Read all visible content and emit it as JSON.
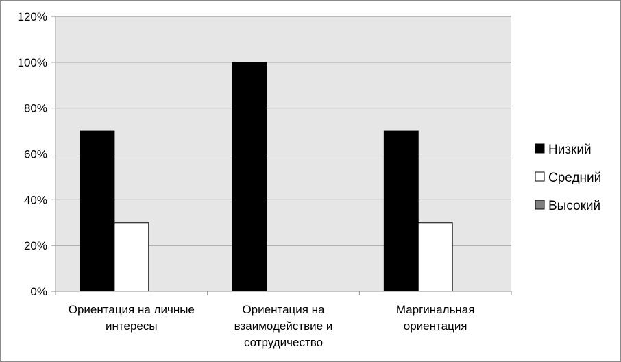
{
  "chart_data": {
    "type": "bar",
    "categories": [
      [
        "Ориентация на личные",
        "интересы"
      ],
      [
        "Ориентация на",
        "взаимодействие и",
        "сотрудичество"
      ],
      [
        "Маргинальная",
        "ориентация"
      ]
    ],
    "series": [
      {
        "name": "Низкий",
        "values": [
          70,
          100,
          70
        ],
        "color": "#000000"
      },
      {
        "name": "Средний",
        "values": [
          30,
          0,
          30
        ],
        "color": "#ffffff"
      },
      {
        "name": "Высокий",
        "values": [
          0,
          0,
          0
        ],
        "color": "#808080"
      }
    ],
    "ylim": [
      0,
      120
    ],
    "yticks": [
      0,
      20,
      40,
      60,
      80,
      100,
      120
    ],
    "ytick_format": "%",
    "grid": true,
    "plot_background": "#e6e6e6",
    "legend_position": "right"
  }
}
